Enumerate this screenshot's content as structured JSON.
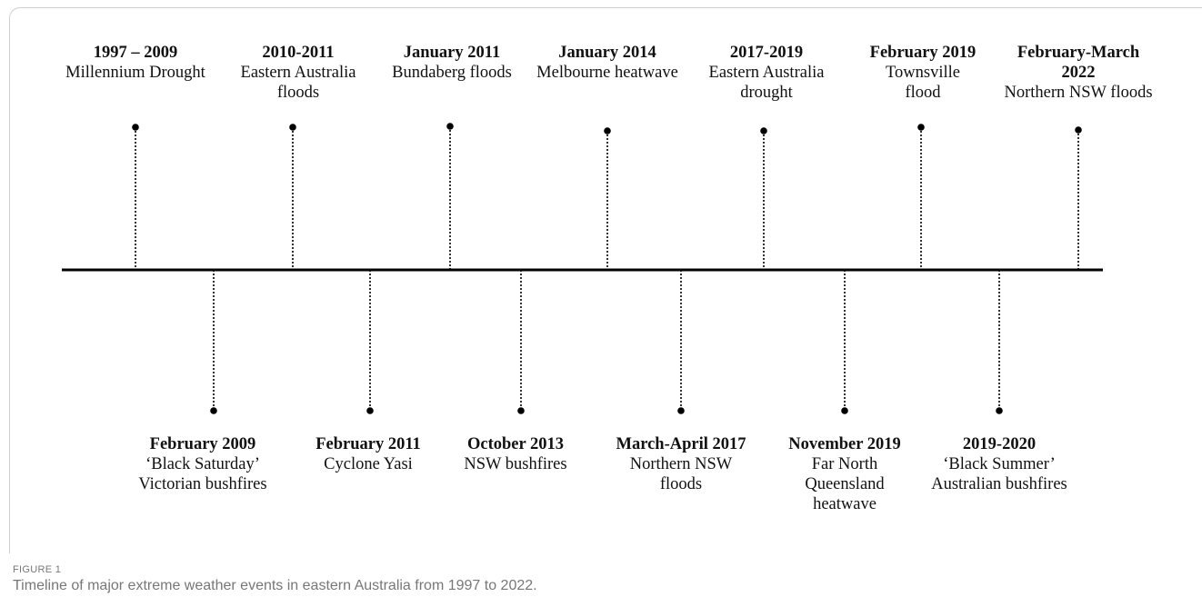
{
  "figure": {
    "label": "FIGURE 1",
    "caption": "Timeline of major extreme weather events in eastern Australia from 1997 to 2022."
  },
  "events": [
    {
      "date": "1997 – 2009",
      "description": "Millennium Drought",
      "side": "above"
    },
    {
      "date": "February 2009",
      "description": "‘Black Saturday’\nVictorian bushfires",
      "side": "below"
    },
    {
      "date": "2010-2011",
      "description": "Eastern Australia\nfloods",
      "side": "above"
    },
    {
      "date": "February 2011",
      "description": "Cyclone Yasi",
      "side": "below"
    },
    {
      "date": "January 2011",
      "description": "Bundaberg floods",
      "side": "above"
    },
    {
      "date": "October 2013",
      "description": "NSW bushfires",
      "side": "below"
    },
    {
      "date": "January 2014",
      "description": "Melbourne heatwave",
      "side": "above"
    },
    {
      "date": "March-April 2017",
      "description": "Northern NSW\nfloods",
      "side": "below"
    },
    {
      "date": "2017-2019",
      "description": "Eastern Australia\ndrought",
      "side": "above"
    },
    {
      "date": "November 2019",
      "description": "Far North\nQueensland\nheatwave",
      "side": "below"
    },
    {
      "date": "February 2019",
      "description": "Townsville\nflood",
      "side": "above"
    },
    {
      "date": "2019-2020",
      "description": "‘Black Summer’\nAustralian bushfires",
      "side": "below"
    },
    {
      "date": "February-March\n2022",
      "description": "Northern NSW floods",
      "side": "above"
    }
  ]
}
